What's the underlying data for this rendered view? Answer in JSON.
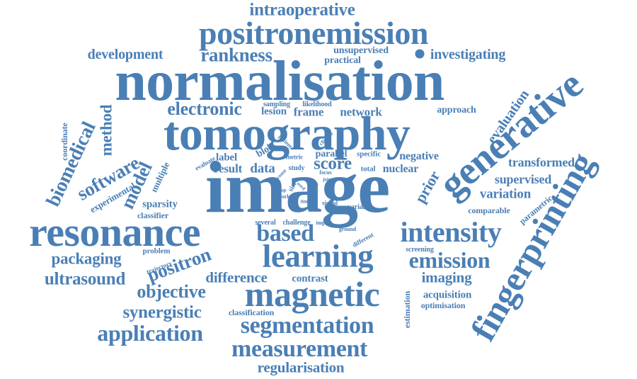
{
  "colors": {
    "word": "#4a7fb5",
    "background": "#ffffff"
  },
  "words": {
    "intraoperative": "intraoperative",
    "positronemission": "positronemission",
    "development": "development",
    "rankness": "rankness",
    "unsupervised": "unsupervised",
    "practical": "practical",
    "investigating": "investigating",
    "normalisation": "normalisation",
    "generative": "generative",
    "evaluation": "evaluation",
    "electronic": "electronic",
    "sampling": "sampling",
    "likelihood": "likelihood",
    "lesion": "lesion",
    "frame": "frame",
    "network": "network",
    "approach": "approach",
    "coordinate": "coordinate",
    "biomedical": "biomedical",
    "method": "method",
    "tomography": "tomography",
    "fingerprinting": "fingerprinting",
    "patient": "patient",
    "clinical": "clinical",
    "software": "software",
    "model": "model",
    "experimental": "experimental",
    "multiple": "multiple",
    "evaluate": "evaluate",
    "label": "label",
    "blob": "blob",
    "metric": "metric",
    "parallel": "parallel",
    "specific": "specific",
    "negative": "negative",
    "result": "result",
    "data": "data",
    "study": "study",
    "score": "score",
    "total": "total",
    "nuclear": "nuclear",
    "transformed": "transformed",
    "supervised": "supervised",
    "variation": "variation",
    "comparable": "comparable",
    "parametric": "parametric",
    "prior": "prior",
    "image": "image",
    "sparsity": "sparsity",
    "classifier": "classifier",
    "resonance": "resonance",
    "several": "several",
    "challenge": "challenge",
    "impact": "impact",
    "signal": "signal",
    "variance": "variance",
    "ground": "ground",
    "different": "different",
    "based": "based",
    "intensity": "intensity",
    "packaging": "packaging",
    "problem": "problem",
    "positron": "positron",
    "learning": "learning",
    "screening": "screening",
    "emission": "emission",
    "ultrasound": "ultrasound",
    "trajectory": "trajectory",
    "difference": "difference",
    "imaging": "imaging",
    "contrast": "contrast",
    "objective": "objective",
    "magnetic": "magnetic",
    "acquisition": "acquisition",
    "optimisation": "optimisation",
    "estimation": "estimation",
    "synergistic": "synergistic",
    "classification": "classification",
    "application": "application",
    "segmentation": "segmentation",
    "measurement": "measurement",
    "regularisation": "regularisation",
    "count": "count",
    "map": "map",
    "work": "work",
    "sirf": "sirf",
    "focus": "focus",
    "joint": "joint",
    "time": "time",
    "used": "used",
    "body": "body"
  }
}
